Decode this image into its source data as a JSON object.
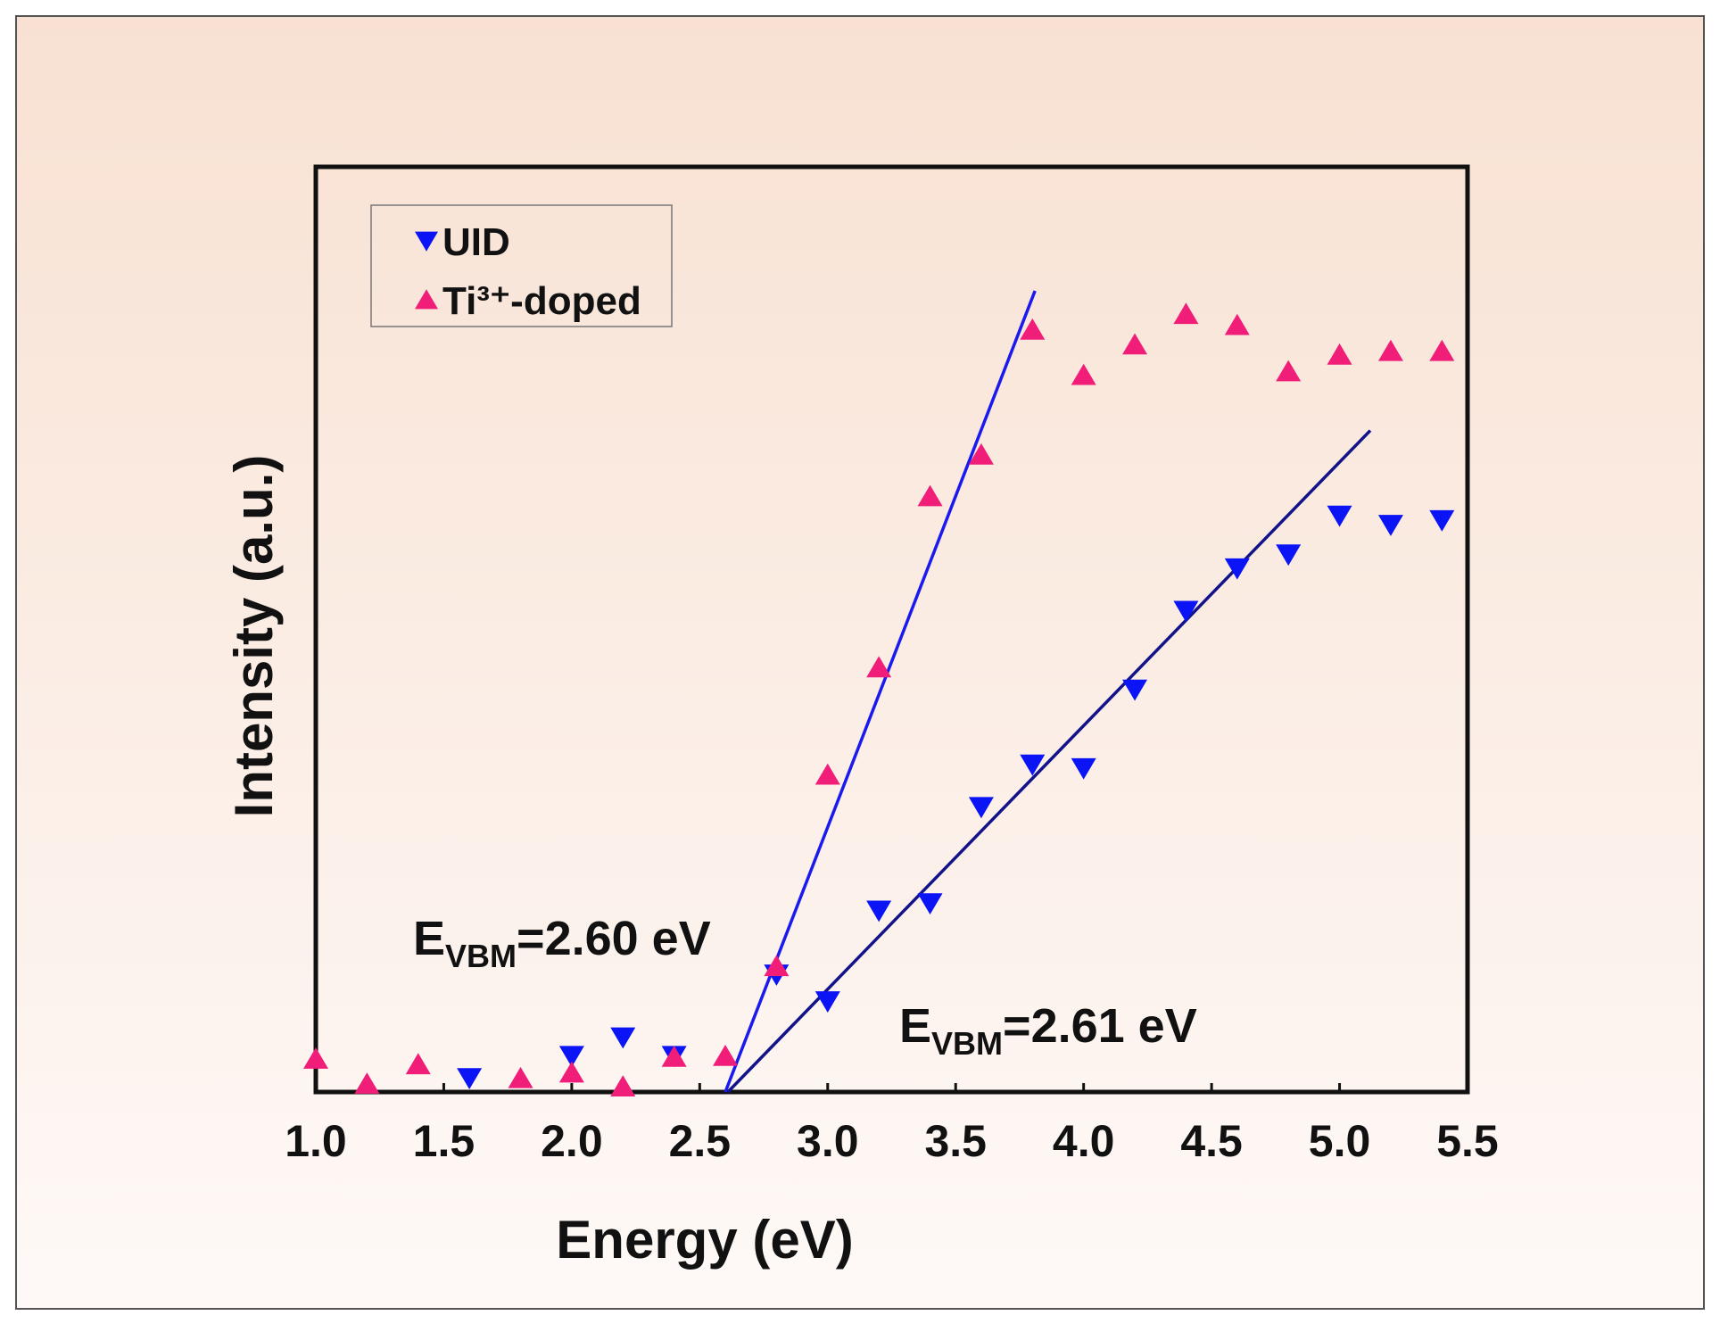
{
  "chart_data": {
    "type": "scatter",
    "x_label": "Energy (eV)",
    "y_label": "Intensity (a.u.)",
    "xlim": [
      1.0,
      5.5
    ],
    "xticks": [
      {
        "value": 1.0,
        "label": "1.0"
      },
      1.5,
      {
        "value": 2.0,
        "label": "2.0"
      },
      2.5,
      {
        "value": 3.0,
        "label": "3.0"
      },
      3.5,
      {
        "value": 4.0,
        "label": "4.0"
      },
      4.5,
      {
        "value": 5.0,
        "label": "5.0"
      },
      5.5
    ],
    "ylim": [
      0,
      100
    ],
    "legend": "top-left",
    "series": [
      {
        "name": "UID",
        "color": "#0a14f5",
        "marker": "down",
        "x": [
          1.6,
          2.0,
          2.2,
          2.4,
          2.8,
          3.0,
          3.2,
          3.4,
          3.6,
          3.8,
          4.0,
          4.2,
          4.4,
          4.6,
          4.8,
          5.0,
          5.2,
          5.4
        ],
        "values": [
          1.5,
          3.9,
          5.9,
          3.9,
          12.7,
          9.8,
          19.6,
          20.4,
          30.8,
          35.4,
          35.0,
          43.5,
          52.0,
          56.6,
          58.1,
          62.3,
          61.3,
          61.8
        ]
      },
      {
        "name": "Ti³⁺-doped",
        "color": "#f01e78",
        "marker": "up",
        "x": [
          1.0,
          1.2,
          1.4,
          1.8,
          2.0,
          2.2,
          2.4,
          2.6,
          2.8,
          3.0,
          3.2,
          3.4,
          3.6,
          3.8,
          4.0,
          4.2,
          4.4,
          4.6,
          4.8,
          5.0,
          5.2,
          5.4
        ],
        "values": [
          3.6,
          0.9,
          3.0,
          1.5,
          2.1,
          0.6,
          3.8,
          3.9,
          13.6,
          34.3,
          45.9,
          64.4,
          68.9,
          82.4,
          77.5,
          80.8,
          84.1,
          82.9,
          77.9,
          79.7,
          80.1,
          80.1
        ]
      }
    ],
    "fit_lines": [
      {
        "color": "#1a1aee",
        "x": [
          2.6,
          3.81
        ],
        "values": [
          0,
          86.6
        ]
      },
      {
        "color": "#12128a",
        "x": [
          2.61,
          5.12
        ],
        "values": [
          0,
          71.5
        ]
      }
    ],
    "annotations": [
      {
        "base": "E",
        "sub": "VBM",
        "rest": "=2.60 eV"
      },
      {
        "base": "E",
        "sub": "VBM",
        "rest": "=2.61 eV"
      }
    ]
  }
}
